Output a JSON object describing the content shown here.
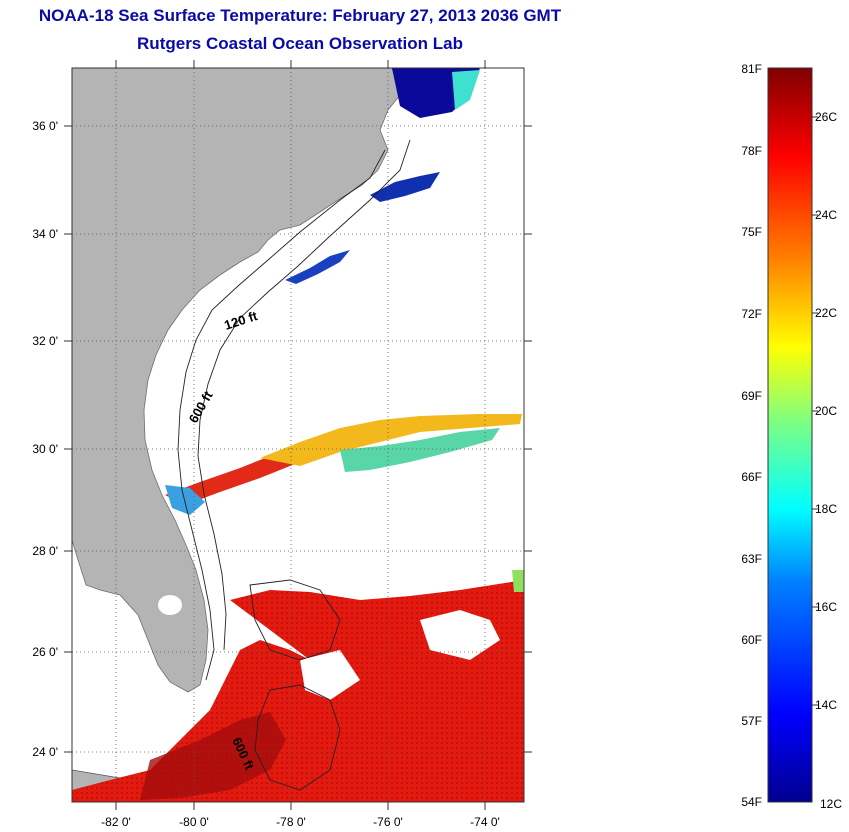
{
  "header": {
    "title": "NOAA-18 Sea Surface Temperature:  February 27, 2013 2036 GMT",
    "subtitle": "Rutgers Coastal Ocean Observation Lab"
  },
  "map": {
    "lat_labels": [
      "36 0'",
      "34 0'",
      "32 0'",
      "30 0'",
      "28 0'",
      "26 0'",
      "24 0'"
    ],
    "lon_labels": [
      "-82 0'",
      "-80 0'",
      "-78 0'",
      "-76 0'",
      "-74 0'"
    ],
    "contour_labels": [
      "120 ft",
      "600 ft",
      "600 ft"
    ]
  },
  "colorbar": {
    "f_labels": [
      "81F",
      "78F",
      "75F",
      "72F",
      "69F",
      "66F",
      "63F",
      "60F",
      "57F",
      "54F"
    ],
    "c_labels": [
      "26C",
      "24C",
      "22C",
      "20C",
      "18C",
      "16C",
      "14C",
      "12C"
    ],
    "colors": [
      "#00008f",
      "#0000ff",
      "#0080ff",
      "#00ffff",
      "#80ff80",
      "#ffff00",
      "#ff8000",
      "#ff0000",
      "#800000"
    ]
  }
}
